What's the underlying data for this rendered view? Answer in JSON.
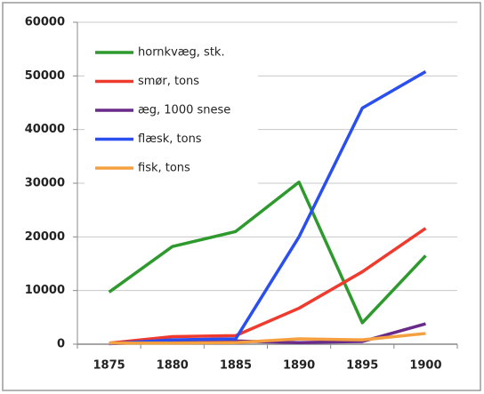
{
  "chart_data": {
    "type": "line",
    "categories": [
      "1875",
      "1880",
      "1885",
      "1890",
      "1895",
      "1900"
    ],
    "series": [
      {
        "name": "hornkvæg, stk.",
        "color": "#2e9a2e",
        "values": [
          9700,
          18200,
          21000,
          30200,
          4000,
          16500
        ]
      },
      {
        "name": "smør, tons",
        "color": "#f03a2e",
        "values": [
          200,
          1400,
          1600,
          6700,
          13500,
          21600
        ]
      },
      {
        "name": "æg, 1000 snese",
        "color": "#6a2a8a",
        "values": [
          100,
          500,
          600,
          300,
          500,
          3800
        ]
      },
      {
        "name": "flæsk, tons",
        "color": "#2a4ff0",
        "values": [
          100,
          800,
          1000,
          20000,
          44000,
          50800
        ]
      },
      {
        "name": "fisk, tons",
        "color": "#f5a040",
        "values": [
          200,
          200,
          300,
          1000,
          800,
          2000
        ]
      }
    ],
    "ylim": [
      0,
      60000
    ],
    "yticks": [
      0,
      10000,
      20000,
      30000,
      40000,
      50000,
      60000
    ],
    "grid": true,
    "legend": "upper left"
  }
}
